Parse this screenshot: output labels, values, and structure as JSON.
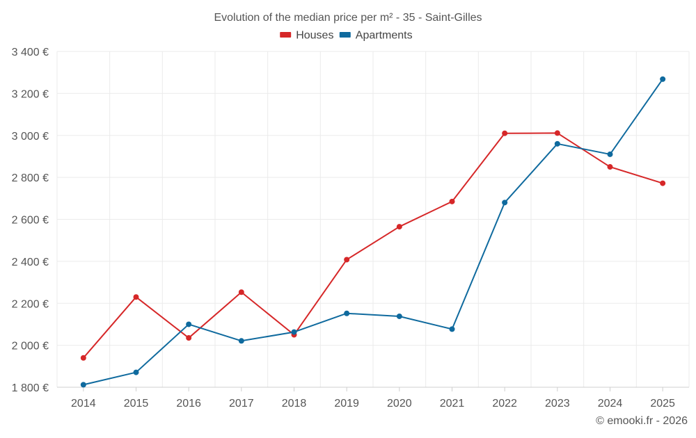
{
  "chart_data": {
    "type": "line",
    "title": "Evolution of the median price per m² - 35 - Saint-Gilles",
    "categories": [
      "2014",
      "2015",
      "2016",
      "2017",
      "2018",
      "2019",
      "2020",
      "2021",
      "2022",
      "2023",
      "2024",
      "2025"
    ],
    "series": [
      {
        "name": "Houses",
        "color": "#d62728",
        "values": [
          1940,
          2230,
          2035,
          2253,
          2050,
          2408,
          2565,
          2685,
          3010,
          3011,
          2850,
          2772
        ]
      },
      {
        "name": "Apartments",
        "color": "#0f6a9e",
        "values": [
          1812,
          1871,
          2100,
          2021,
          2063,
          2152,
          2138,
          2077,
          2680,
          2960,
          2910,
          3268
        ]
      }
    ],
    "ylim": [
      1800,
      3400
    ],
    "y_ticks": [
      1800,
      2000,
      2200,
      2400,
      2600,
      2800,
      3000,
      3200,
      3400
    ],
    "y_tick_labels": [
      "1 800 €",
      "2 000 €",
      "2 200 €",
      "2 400 €",
      "2 600 €",
      "2 800 €",
      "3 000 €",
      "3 200 €",
      "3 400 €"
    ],
    "legend_position": "top-center",
    "grid": true
  },
  "credit": "© emooki.fr - 2026"
}
